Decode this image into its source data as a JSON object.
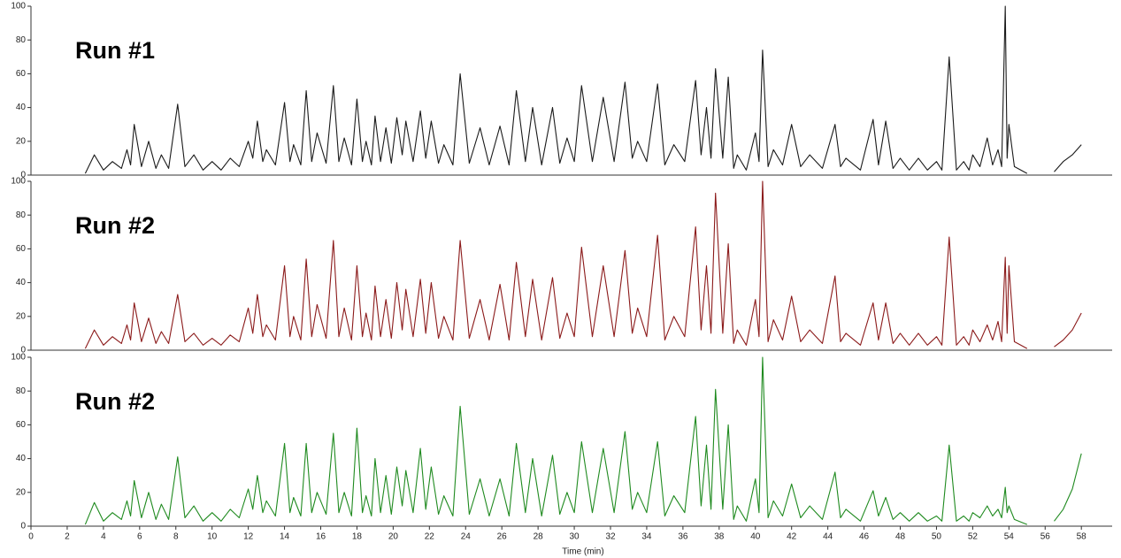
{
  "chart_data": [
    {
      "type": "line",
      "title": "Run #1",
      "color": "#1a1a1a",
      "xlim": [
        0,
        59.7
      ],
      "ylim": [
        0,
        100
      ],
      "yticks": [
        0,
        20,
        40,
        60,
        80,
        100
      ],
      "x": [
        3,
        3.5,
        4,
        4.5,
        5,
        5.3,
        5.5,
        5.7,
        6.1,
        6.5,
        6.9,
        7.2,
        7.6,
        8.1,
        8.5,
        9,
        9.5,
        10,
        10.5,
        11,
        11.5,
        12,
        12.25,
        12.5,
        12.8,
        13,
        13.5,
        14,
        14.3,
        14.5,
        14.9,
        15.2,
        15.5,
        15.8,
        16.3,
        16.7,
        17,
        17.3,
        17.7,
        18,
        18.3,
        18.5,
        18.8,
        19,
        19.3,
        19.6,
        19.9,
        20.2,
        20.5,
        20.7,
        21.1,
        21.5,
        21.8,
        22.1,
        22.5,
        22.8,
        23.3,
        23.7,
        24.2,
        24.8,
        25.3,
        25.9,
        26.4,
        26.8,
        27.3,
        27.7,
        28.2,
        28.8,
        29.2,
        29.6,
        30,
        30.4,
        31,
        31.6,
        32.2,
        32.8,
        33.2,
        33.5,
        34,
        34.6,
        35,
        35.5,
        36.1,
        36.7,
        37,
        37.3,
        37.55,
        37.8,
        38.2,
        38.5,
        38.8,
        39,
        39.5,
        40,
        40.2,
        40.4,
        40.7,
        41,
        41.5,
        42,
        42.5,
        43,
        43.7,
        44.4,
        44.7,
        45,
        45.8,
        46.5,
        46.8,
        47.2,
        47.6,
        48,
        48.5,
        49,
        49.5,
        50,
        50.3,
        50.7,
        51.1,
        51.5,
        51.8,
        52,
        52.4,
        52.8,
        53.1,
        53.4,
        53.6,
        53.8,
        53.9,
        54,
        54.3,
        55,
        55.7,
        56.5,
        57,
        57.5,
        58
      ],
      "values": [
        1,
        12,
        3,
        8,
        4,
        15,
        6,
        30,
        5,
        20,
        4,
        12,
        4,
        42,
        5,
        12,
        3,
        8,
        3,
        10,
        5,
        20,
        10,
        32,
        8,
        15,
        6,
        43,
        8,
        18,
        6,
        50,
        8,
        25,
        7,
        53,
        8,
        22,
        6,
        45,
        8,
        20,
        6,
        35,
        8,
        28,
        7,
        34,
        12,
        32,
        8,
        38,
        10,
        32,
        7,
        18,
        6,
        60,
        7,
        28,
        6,
        29,
        6,
        50,
        8,
        40,
        6,
        40,
        7,
        22,
        8,
        53,
        8,
        46,
        8,
        55,
        10,
        20,
        8,
        54,
        6,
        18,
        8,
        56,
        12,
        40,
        10,
        63,
        10,
        58,
        4,
        12,
        3,
        25,
        8,
        74,
        5,
        15,
        6,
        30,
        5,
        12,
        4,
        30,
        5,
        10,
        3,
        33,
        6,
        32,
        4,
        10,
        3,
        10,
        3,
        8,
        3,
        70,
        3,
        8,
        3,
        12,
        5,
        22,
        6,
        15,
        5,
        100,
        10,
        30,
        5,
        1,
        null,
        2,
        8,
        12,
        18
      ]
    },
    {
      "type": "line",
      "title": "Run #2",
      "color": "#8b1a1a",
      "xlim": [
        0,
        59.7
      ],
      "ylim": [
        0,
        100
      ],
      "yticks": [
        0,
        20,
        40,
        60,
        80,
        100
      ],
      "x": [
        3,
        3.5,
        4,
        4.5,
        5,
        5.3,
        5.5,
        5.7,
        6.1,
        6.5,
        6.9,
        7.2,
        7.6,
        8.1,
        8.5,
        9,
        9.5,
        10,
        10.5,
        11,
        11.5,
        12,
        12.25,
        12.5,
        12.8,
        13,
        13.5,
        14,
        14.3,
        14.5,
        14.9,
        15.2,
        15.5,
        15.8,
        16.3,
        16.7,
        17,
        17.3,
        17.7,
        18,
        18.3,
        18.5,
        18.8,
        19,
        19.3,
        19.6,
        19.9,
        20.2,
        20.5,
        20.7,
        21.1,
        21.5,
        21.8,
        22.1,
        22.5,
        22.8,
        23.3,
        23.7,
        24.2,
        24.8,
        25.3,
        25.9,
        26.4,
        26.8,
        27.3,
        27.7,
        28.2,
        28.8,
        29.2,
        29.6,
        30,
        30.4,
        31,
        31.6,
        32.2,
        32.8,
        33.2,
        33.5,
        34,
        34.6,
        35,
        35.5,
        36.1,
        36.7,
        37,
        37.3,
        37.55,
        37.8,
        38.2,
        38.5,
        38.8,
        39,
        39.5,
        40,
        40.2,
        40.4,
        40.7,
        41,
        41.5,
        42,
        42.5,
        43,
        43.7,
        44.4,
        44.7,
        45,
        45.8,
        46.5,
        46.8,
        47.2,
        47.6,
        48,
        48.5,
        49,
        49.5,
        50,
        50.3,
        50.7,
        51.1,
        51.5,
        51.8,
        52,
        52.4,
        52.8,
        53.1,
        53.4,
        53.6,
        53.8,
        53.9,
        54,
        54.3,
        55,
        55.7,
        56.5,
        57,
        57.5,
        58
      ],
      "values": [
        1,
        12,
        3,
        8,
        4,
        15,
        6,
        28,
        5,
        19,
        4,
        11,
        4,
        33,
        5,
        10,
        3,
        7,
        3,
        9,
        5,
        25,
        10,
        33,
        8,
        15,
        6,
        50,
        8,
        20,
        6,
        54,
        8,
        27,
        7,
        65,
        8,
        25,
        6,
        50,
        8,
        22,
        6,
        38,
        8,
        30,
        7,
        40,
        12,
        36,
        8,
        42,
        10,
        40,
        7,
        20,
        6,
        65,
        7,
        30,
        6,
        39,
        6,
        52,
        8,
        42,
        6,
        43,
        7,
        22,
        8,
        61,
        8,
        50,
        8,
        59,
        10,
        25,
        8,
        68,
        6,
        20,
        8,
        73,
        12,
        50,
        10,
        93,
        10,
        63,
        4,
        12,
        3,
        30,
        8,
        100,
        5,
        18,
        6,
        32,
        5,
        12,
        4,
        44,
        5,
        10,
        3,
        28,
        6,
        28,
        4,
        10,
        3,
        10,
        3,
        8,
        3,
        67,
        3,
        8,
        3,
        12,
        5,
        15,
        6,
        17,
        5,
        55,
        10,
        50,
        5,
        1,
        null,
        2,
        6,
        12,
        22
      ]
    },
    {
      "type": "line",
      "title": "Run #2",
      "color": "#1f8a1f",
      "xlabel": "Time (min)",
      "xlim": [
        0,
        59.7
      ],
      "xticks": [
        0,
        2,
        4,
        6,
        8,
        10,
        12,
        14,
        16,
        18,
        20,
        22,
        24,
        26,
        28,
        30,
        32,
        34,
        36,
        38,
        40,
        42,
        44,
        46,
        48,
        50,
        52,
        54,
        56,
        58
      ],
      "ylim": [
        0,
        100
      ],
      "yticks": [
        0,
        20,
        40,
        60,
        80,
        100
      ],
      "x": [
        3,
        3.5,
        4,
        4.5,
        5,
        5.3,
        5.5,
        5.7,
        6.1,
        6.5,
        6.9,
        7.2,
        7.6,
        8.1,
        8.5,
        9,
        9.5,
        10,
        10.5,
        11,
        11.5,
        12,
        12.25,
        12.5,
        12.8,
        13,
        13.5,
        14,
        14.3,
        14.5,
        14.9,
        15.2,
        15.5,
        15.8,
        16.3,
        16.7,
        17,
        17.3,
        17.7,
        18,
        18.3,
        18.5,
        18.8,
        19,
        19.3,
        19.6,
        19.9,
        20.2,
        20.5,
        20.7,
        21.1,
        21.5,
        21.8,
        22.1,
        22.5,
        22.8,
        23.3,
        23.7,
        24.2,
        24.8,
        25.3,
        25.9,
        26.4,
        26.8,
        27.3,
        27.7,
        28.2,
        28.8,
        29.2,
        29.6,
        30,
        30.4,
        31,
        31.6,
        32.2,
        32.8,
        33.2,
        33.5,
        34,
        34.6,
        35,
        35.5,
        36.1,
        36.7,
        37,
        37.3,
        37.55,
        37.8,
        38.2,
        38.5,
        38.8,
        39,
        39.5,
        40,
        40.2,
        40.4,
        40.7,
        41,
        41.5,
        42,
        42.5,
        43,
        43.7,
        44.4,
        44.7,
        45,
        45.8,
        46.5,
        46.8,
        47.2,
        47.6,
        48,
        48.5,
        49,
        49.5,
        50,
        50.3,
        50.7,
        51.1,
        51.5,
        51.8,
        52,
        52.4,
        52.8,
        53.1,
        53.4,
        53.6,
        53.8,
        53.9,
        54,
        54.3,
        55,
        55.7,
        56.5,
        57,
        57.5,
        58
      ],
      "values": [
        1,
        14,
        3,
        8,
        4,
        15,
        6,
        27,
        5,
        20,
        4,
        13,
        4,
        41,
        5,
        12,
        3,
        8,
        3,
        10,
        5,
        22,
        10,
        30,
        8,
        15,
        6,
        49,
        8,
        17,
        6,
        49,
        8,
        20,
        7,
        55,
        8,
        20,
        6,
        58,
        8,
        18,
        6,
        40,
        8,
        30,
        7,
        35,
        12,
        33,
        8,
        46,
        10,
        35,
        7,
        18,
        6,
        71,
        7,
        28,
        6,
        28,
        6,
        49,
        8,
        40,
        6,
        42,
        7,
        20,
        8,
        50,
        8,
        46,
        8,
        56,
        10,
        20,
        8,
        50,
        6,
        18,
        8,
        65,
        12,
        48,
        10,
        81,
        10,
        60,
        4,
        12,
        3,
        28,
        8,
        100,
        5,
        15,
        6,
        25,
        5,
        12,
        4,
        32,
        5,
        10,
        3,
        21,
        6,
        17,
        4,
        8,
        3,
        8,
        3,
        6,
        3,
        48,
        3,
        6,
        3,
        8,
        5,
        12,
        6,
        10,
        5,
        23,
        8,
        12,
        4,
        1,
        null,
        3,
        10,
        22,
        43
      ]
    }
  ]
}
